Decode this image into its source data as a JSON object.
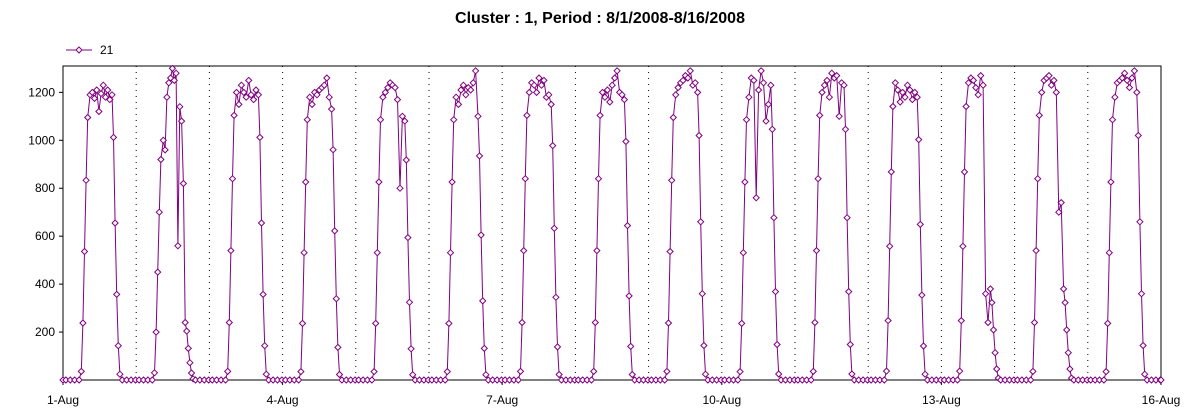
{
  "chart_data": {
    "type": "line",
    "title": "Cluster : 1, Period : 8/1/2008-8/16/2008",
    "xlabel": "",
    "ylabel": "",
    "x_tick_labels": [
      "1-Aug",
      "4-Aug",
      "7-Aug",
      "10-Aug",
      "13-Aug",
      "16-Aug"
    ],
    "x_tick_days": [
      0,
      3,
      6,
      9,
      12,
      15
    ],
    "x_range_days": [
      0,
      15
    ],
    "ylim": [
      0,
      1310
    ],
    "y_ticks": [
      200,
      400,
      600,
      800,
      1000,
      1200
    ],
    "grid": "dotted vertical lines at day boundaries",
    "legend_position": "top-left",
    "series": [
      {
        "name": "21",
        "color": "#800080",
        "days": [
          {
            "day": 1,
            "plateau": [
              1190,
              1200,
              1175,
              1210,
              1120,
              1195,
              1230,
              1180,
              1210,
              1170,
              1190
            ]
          },
          {
            "day": 2,
            "plateau": [
              1000,
              960,
              1180,
              1240,
              1260,
              1300,
              1250,
              1280,
              560,
              1140,
              1080,
              820,
              240
            ]
          },
          {
            "day": 3,
            "plateau": [
              1200,
              1150,
              1230,
              1200,
              1180,
              1250,
              1190,
              1170,
              1210,
              1190
            ]
          },
          {
            "day": 4,
            "plateau": [
              1180,
              1150,
              1200,
              1190,
              1210,
              1220,
              1230,
              1260,
              1180,
              1130
            ]
          },
          {
            "day": 5,
            "plateau": [
              1180,
              1200,
              1220,
              1240,
              1230,
              1220,
              1170,
              800,
              1100,
              1080
            ]
          },
          {
            "day": 6,
            "plateau": [
              1180,
              1150,
              1210,
              1230,
              1190,
              1220,
              1210,
              1240,
              1290,
              1100
            ]
          },
          {
            "day": 7,
            "plateau": [
              1200,
              1240,
              1230,
              1200,
              1260,
              1230,
              1250,
              1180,
              1190,
              1150
            ]
          },
          {
            "day": 8,
            "plateau": [
              1200,
              1180,
              1210,
              1160,
              1230,
              1260,
              1290,
              1200,
              1190,
              1170
            ]
          },
          {
            "day": 9,
            "plateau": [
              1190,
              1220,
              1240,
              1250,
              1270,
              1260,
              1290,
              1230,
              1240,
              1200
            ]
          },
          {
            "day": 10,
            "plateau": [
              1180,
              1260,
              1250,
              760,
              1210,
              1290,
              1240,
              1080,
              1150,
              1230
            ]
          },
          {
            "day": 11,
            "plateau": [
              1200,
              1230,
              1250,
              1180,
              1280,
              1260,
              1270,
              1100,
              1240,
              1230
            ]
          },
          {
            "day": 12,
            "plateau": [
              1240,
              1210,
              1160,
              1200,
              1180,
              1230,
              1210,
              1170,
              1200,
              1180
            ]
          },
          {
            "day": 13,
            "plateau": [
              1240,
              1260,
              1250,
              1220,
              1190,
              1270,
              1230,
              360,
              240,
              380
            ]
          },
          {
            "day": 14,
            "plateau": [
              1200,
              1250,
              1260,
              1270,
              1230,
              1250,
              1200,
              700,
              740,
              380
            ]
          },
          {
            "day": 15,
            "plateau": [
              1180,
              1240,
              1250,
              1260,
              1280,
              1250,
              1220,
              1260,
              1290,
              1200
            ]
          }
        ],
        "night_value": 0,
        "daylight_start_frac": 0.25,
        "daylight_end_frac": 0.79
      }
    ]
  }
}
